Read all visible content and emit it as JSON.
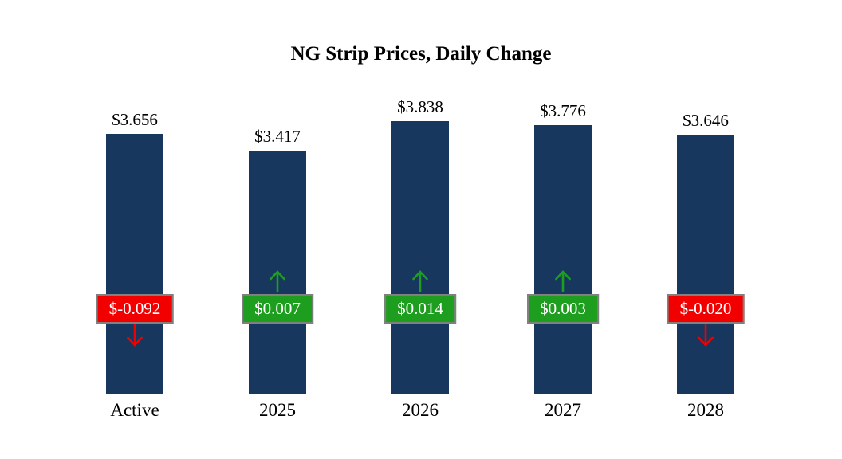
{
  "title": "NG Strip Prices, Daily Change",
  "chart_data": {
    "type": "bar",
    "categories": [
      "Active",
      "2025",
      "2026",
      "2027",
      "2028"
    ],
    "series": [
      {
        "name": "Strip Price",
        "values": [
          3.656,
          3.417,
          3.838,
          3.776,
          3.646
        ]
      },
      {
        "name": "Daily Change",
        "values": [
          -0.092,
          0.007,
          0.014,
          0.003,
          -0.02
        ]
      }
    ],
    "price_labels": [
      "$3.656",
      "$3.417",
      "$3.838",
      "$3.776",
      "$3.646"
    ],
    "change_labels": [
      "$-0.092",
      "$0.007",
      "$0.014",
      "$0.003",
      "$-0.020"
    ],
    "directions": [
      "down",
      "up",
      "up",
      "up",
      "down"
    ],
    "ylim": [
      0,
      4
    ],
    "legend": "none",
    "grid": "off",
    "colors": {
      "bar": "#17375E",
      "up": "#1E9E1E",
      "down": "#F20000",
      "badge_text": "#FFFFFF",
      "badge_border": "#808080"
    }
  }
}
